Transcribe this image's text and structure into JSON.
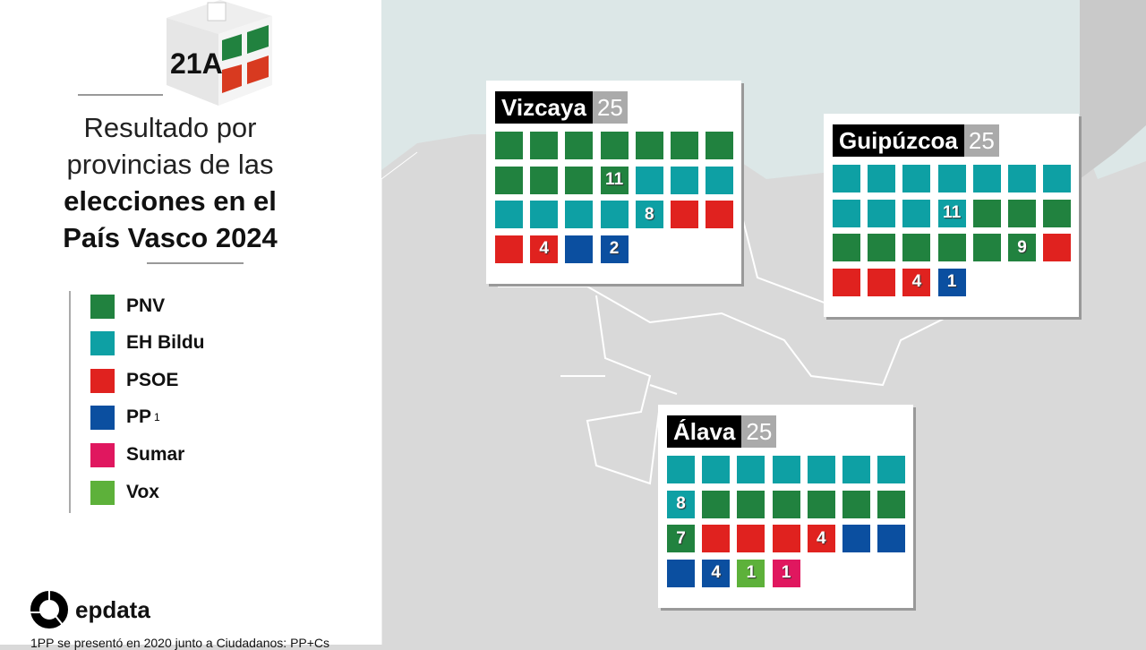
{
  "title": {
    "line1": "Resultado por",
    "line2": "provincias de las",
    "line3": "elecciones en el",
    "line4": "País Vasco 2024"
  },
  "badge": {
    "text": "21A"
  },
  "legend": [
    {
      "label": "PNV",
      "color": "#21823f",
      "sup": ""
    },
    {
      "label": "EH Bildu",
      "color": "#0ea0a4",
      "sup": ""
    },
    {
      "label": "PSOE",
      "color": "#e0221f",
      "sup": ""
    },
    {
      "label": "PP",
      "color": "#0b4fa0",
      "sup": "1"
    },
    {
      "label": "Sumar",
      "color": "#e0175f",
      "sup": ""
    },
    {
      "label": "Vox",
      "color": "#5db13a",
      "sup": ""
    }
  ],
  "brand": "epdata",
  "footnote": "1PP se presentó en 2020 junto a Ciudadanos: PP+Cs",
  "chart_data": {
    "type": "table",
    "provinces": [
      {
        "name": "Vizcaya",
        "total": "25",
        "seats": [
          {
            "party": "PNV",
            "value": 11
          },
          {
            "party": "EH Bildu",
            "value": 8
          },
          {
            "party": "PSOE",
            "value": 4
          },
          {
            "party": "PP",
            "value": 2
          }
        ]
      },
      {
        "name": "Guipúzcoa",
        "total": "25",
        "seats": [
          {
            "party": "EH Bildu",
            "value": 11
          },
          {
            "party": "PNV",
            "value": 9
          },
          {
            "party": "PSOE",
            "value": 4
          },
          {
            "party": "PP",
            "value": 1
          }
        ]
      },
      {
        "name": "Álava",
        "total": "25",
        "seats": [
          {
            "party": "EH Bildu",
            "value": 8
          },
          {
            "party": "PNV",
            "value": 7
          },
          {
            "party": "PSOE",
            "value": 4
          },
          {
            "party": "PP",
            "value": 4
          },
          {
            "party": "Vox",
            "value": 1
          },
          {
            "party": "Sumar",
            "value": 1
          }
        ]
      }
    ]
  }
}
